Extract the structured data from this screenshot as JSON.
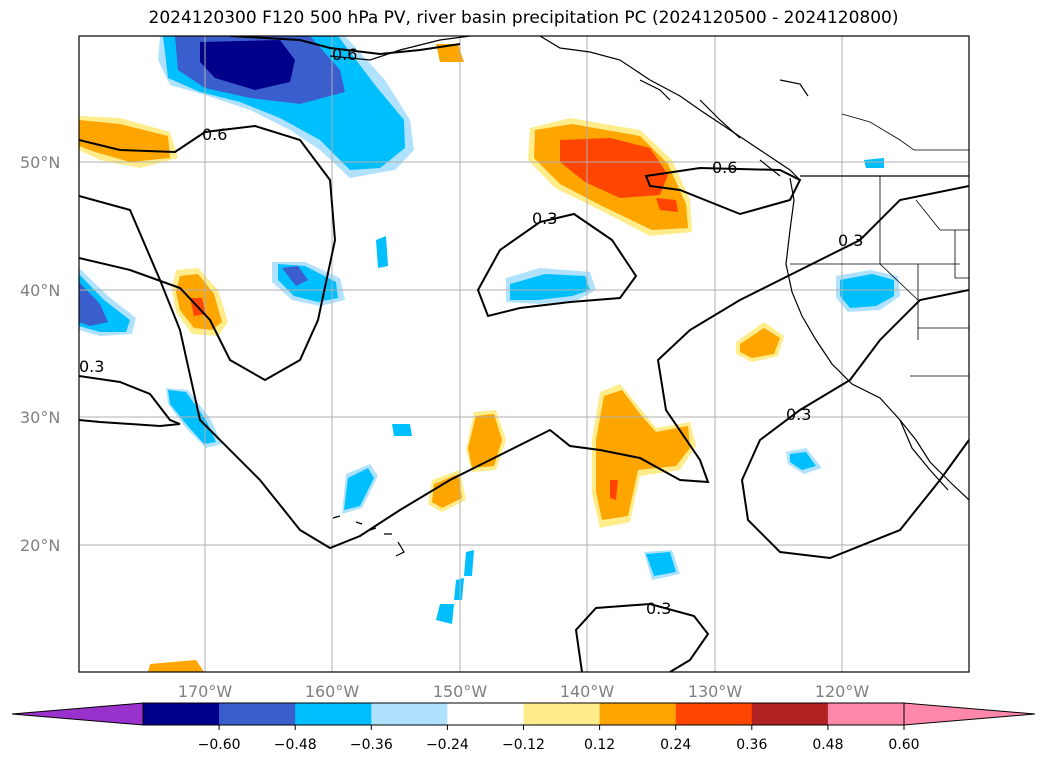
{
  "title": "2024120300 F120 500 hPa PV, river basin precipitation PC (2024120500 - 2024120800)",
  "lat_labels": [
    "50°N",
    "40°N",
    "30°N",
    "20°N"
  ],
  "lon_labels": [
    "170°W",
    "160°W",
    "150°W",
    "140°W",
    "130°W",
    "120°W"
  ],
  "contour_labels": [
    "0.6",
    "0.6",
    "0.6",
    "0.3",
    "0.3",
    "0.3",
    "0.3",
    "0.3"
  ],
  "colorbar": {
    "ticks": [
      "−0.60",
      "−0.48",
      "−0.36",
      "−0.24",
      "−0.12",
      "0.12",
      "0.24",
      "0.36",
      "0.48",
      "0.60"
    ],
    "colors": {
      "under": "#9932cc",
      "bins": [
        "#00008b",
        "#3a5fcd",
        "#00bfff",
        "#b0e2ff",
        "#ffffff",
        "#ffec8b",
        "#ffa500",
        "#ff4500",
        "#b22222",
        "#ff88aa"
      ],
      "over": "#ff88aa"
    }
  }
}
